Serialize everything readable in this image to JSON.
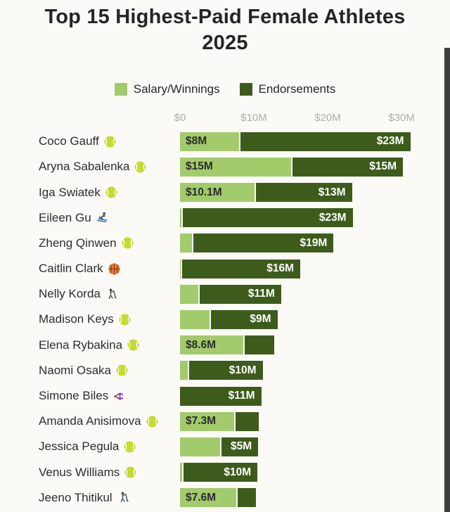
{
  "page": {
    "title": "Top 15 Highest-Paid Female Athletes 2025"
  },
  "colors": {
    "background": "#fbfaf7",
    "salary": "#a2cb6c",
    "endorsements": "#3d5c1c",
    "title_text": "#252525",
    "axis_text": "#aeaea6",
    "bar_label_light": "#2b2b2b",
    "bar_label_dark": "#ffffff"
  },
  "chart_data": {
    "type": "bar",
    "orientation": "horizontal",
    "stacked": true,
    "title": "Top 15 Highest-Paid Female Athletes 2025",
    "unit": "USD millions",
    "xlim": [
      0,
      32
    ],
    "legend_position": "top",
    "grid": false,
    "x_ticks": [
      {
        "value": 0,
        "label": "$0"
      },
      {
        "value": 10,
        "label": "$10M"
      },
      {
        "value": 20,
        "label": "$20M"
      },
      {
        "value": 30,
        "label": "$30M"
      }
    ],
    "series": [
      {
        "name": "Salary/Winnings",
        "color": "#a2cb6c"
      },
      {
        "name": "Endorsements",
        "color": "#3d5c1c"
      }
    ],
    "rows": [
      {
        "rank": 1,
        "name": "Coco Gauff",
        "icon": "tennis-ball",
        "salary": 8,
        "endorsements": 23,
        "salary_label": "$8M",
        "endorsements_label": "$23M"
      },
      {
        "rank": 2,
        "name": "Aryna Sabalenka",
        "icon": "tennis-ball",
        "salary": 15,
        "endorsements": 15,
        "salary_label": "$15M",
        "endorsements_label": "$15M"
      },
      {
        "rank": 3,
        "name": "Iga Swiatek",
        "icon": "tennis-ball",
        "salary": 10.1,
        "endorsements": 13,
        "salary_label": "$10.1M",
        "endorsements_label": "$13M"
      },
      {
        "rank": 4,
        "name": "Eileen Gu",
        "icon": "skier",
        "salary": 0.2,
        "endorsements": 23,
        "salary_label": null,
        "endorsements_label": "$23M"
      },
      {
        "rank": 5,
        "name": "Zheng Qinwen",
        "icon": "tennis-ball",
        "salary": 1.6,
        "endorsements": 19,
        "salary_label": null,
        "endorsements_label": "$19M"
      },
      {
        "rank": 6,
        "name": "Caitlin Clark",
        "icon": "basketball",
        "salary": 0.1,
        "endorsements": 16,
        "salary_label": null,
        "endorsements_label": "$16M"
      },
      {
        "rank": 7,
        "name": "Nelly Korda",
        "icon": "golfer",
        "salary": 2.5,
        "endorsements": 11,
        "salary_label": null,
        "endorsements_label": "$11M"
      },
      {
        "rank": 8,
        "name": "Madison Keys",
        "icon": "tennis-ball",
        "salary": 4,
        "endorsements": 9,
        "salary_label": null,
        "endorsements_label": "$9M"
      },
      {
        "rank": 9,
        "name": "Elena Rybakina",
        "icon": "tennis-ball",
        "salary": 8.6,
        "endorsements": 4,
        "salary_label": "$8.6M",
        "endorsements_label": null
      },
      {
        "rank": 10,
        "name": "Naomi Osaka",
        "icon": "tennis-ball",
        "salary": 1,
        "endorsements": 10,
        "salary_label": null,
        "endorsements_label": "$10M"
      },
      {
        "rank": 11,
        "name": "Simone Biles",
        "icon": "gymnast",
        "salary": 0,
        "endorsements": 11,
        "salary_label": null,
        "endorsements_label": "$11M"
      },
      {
        "rank": 12,
        "name": "Amanda Anisimova",
        "icon": "tennis-ball",
        "salary": 7.3,
        "endorsements": 3.2,
        "salary_label": "$7.3M",
        "endorsements_label": null
      },
      {
        "rank": 13,
        "name": "Jessica Pegula",
        "icon": "tennis-ball",
        "salary": 5.4,
        "endorsements": 5,
        "salary_label": null,
        "endorsements_label": "$5M"
      },
      {
        "rank": 14,
        "name": "Venus Williams",
        "icon": "tennis-ball",
        "salary": 0.3,
        "endorsements": 10,
        "salary_label": null,
        "endorsements_label": "$10M"
      },
      {
        "rank": 15,
        "name": "Jeeno Thitikul",
        "icon": "golfer",
        "salary": 7.6,
        "endorsements": 2.5,
        "salary_label": "$7.6M",
        "endorsements_label": null
      }
    ]
  }
}
